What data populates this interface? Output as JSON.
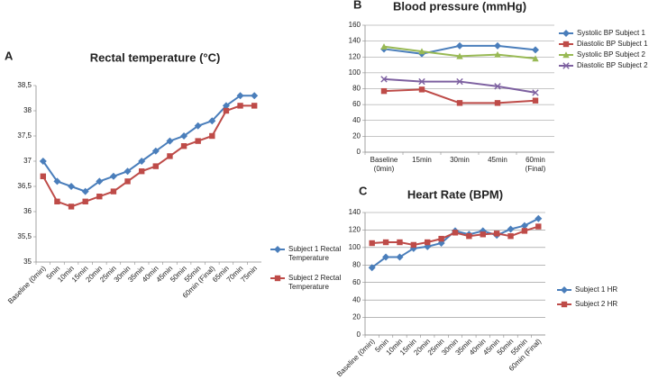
{
  "chart_data": [
    {
      "type": "line",
      "panel_label": "A",
      "title": "Rectal temperature (°C)",
      "categories": [
        "Baseline (0min)",
        "5min",
        "10min",
        "15min",
        "20min",
        "25min",
        "30min",
        "35min",
        "40min",
        "45min",
        "50min",
        "55min",
        "60min (Final)",
        "65min",
        "70min",
        "75min"
      ],
      "series": [
        {
          "name": "Subject 1 Rectal Temperature",
          "color": "#4a7ebb",
          "marker": "diamond",
          "values": [
            37,
            36.6,
            36.5,
            36.4,
            36.6,
            36.7,
            36.8,
            37,
            37.2,
            37.4,
            37.5,
            37.7,
            37.8,
            38.1,
            38.3,
            38.3
          ]
        },
        {
          "name": "Subject 2 Rectal Temperature",
          "color": "#be4b48",
          "marker": "square",
          "values": [
            36.7,
            36.2,
            36.1,
            36.2,
            36.3,
            36.4,
            36.6,
            36.8,
            36.9,
            37.1,
            37.3,
            37.4,
            37.5,
            38,
            38.1,
            38.1
          ]
        }
      ],
      "ylim": [
        35,
        38.5
      ],
      "yticks": [
        35,
        {
          "value": 35.5,
          "label": "35,5"
        },
        36,
        {
          "value": 36.5,
          "label": "36,5"
        },
        37,
        {
          "value": 37.5,
          "label": "37,5"
        },
        38,
        {
          "value": 38.5,
          "label": "38,5"
        }
      ],
      "grid": false,
      "legend": "right"
    },
    {
      "type": "line",
      "panel_label": "B",
      "title": "Blood pressure (mmHg)",
      "categories": [
        "Baseline (0min)",
        "15min",
        "30min",
        "45min",
        "60min (Final)"
      ],
      "series": [
        {
          "name": "Systolic BP Subject 1",
          "color": "#4a7ebb",
          "marker": "diamond",
          "values": [
            130,
            124,
            134,
            134,
            129
          ]
        },
        {
          "name": "Diastolic BP Subject 1",
          "color": "#be4b48",
          "marker": "square",
          "values": [
            77,
            79,
            62,
            62,
            65
          ]
        },
        {
          "name": "Systolic BP Subject 2",
          "color": "#98b954",
          "marker": "triangle",
          "values": [
            133,
            127,
            121,
            123,
            118
          ]
        },
        {
          "name": "Diastolic BP Subject 2",
          "color": "#7d60a0",
          "marker": "x",
          "values": [
            92,
            89,
            89,
            83,
            75
          ]
        }
      ],
      "ylim": [
        0,
        160
      ],
      "yticks": [
        0,
        20,
        40,
        60,
        80,
        100,
        120,
        140,
        160
      ],
      "grid": true,
      "legend": "right"
    },
    {
      "type": "line",
      "panel_label": "C",
      "title": "Heart Rate (BPM)",
      "categories": [
        "Baseline (0min)",
        "5min",
        "10min",
        "15min",
        "20min",
        "25min",
        "30min",
        "35min",
        "40min",
        "45min",
        "50min",
        "55min",
        "60min (Final)"
      ],
      "series": [
        {
          "name": "Subject 1 HR",
          "color": "#4a7ebb",
          "marker": "diamond",
          "values": [
            77,
            89,
            89,
            99,
            101,
            105,
            119,
            115,
            119,
            114,
            121,
            125,
            133
          ]
        },
        {
          "name": "Subject 2 HR",
          "color": "#be4b48",
          "marker": "square",
          "values": [
            105,
            106,
            106,
            103,
            106,
            110,
            117,
            113,
            115,
            116,
            113,
            119,
            124
          ]
        }
      ],
      "ylim": [
        0,
        140
      ],
      "yticks": [
        0,
        20,
        40,
        60,
        80,
        100,
        120,
        140
      ],
      "grid": true,
      "legend": "right"
    }
  ]
}
